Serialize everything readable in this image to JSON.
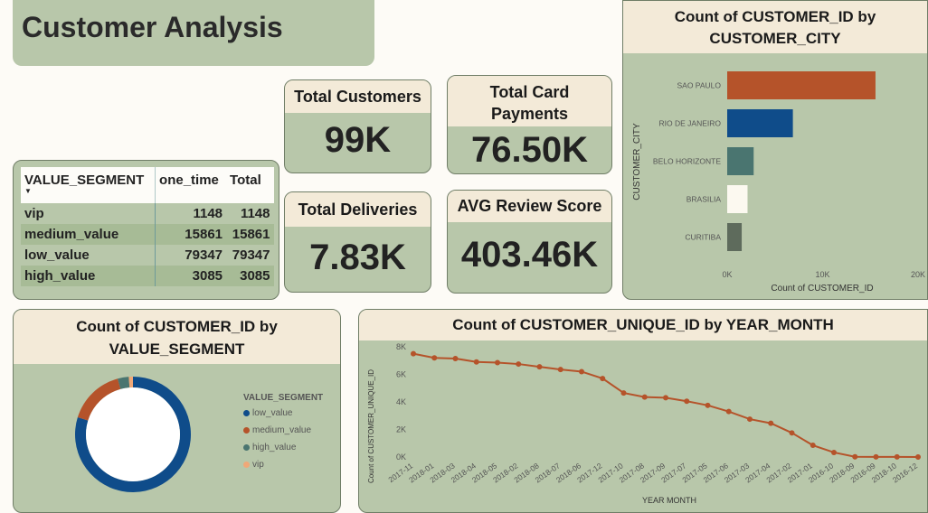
{
  "page_title": "Customer Analysis",
  "cards": {
    "total_customers": {
      "label": "Total Customers",
      "value": "99K"
    },
    "total_card_payments": {
      "label": "Total Card Payments",
      "value": "76.50K"
    },
    "total_deliveries": {
      "label": "Total Deliveries",
      "value": "7.83K"
    },
    "avg_review_score": {
      "label": "AVG Review Score",
      "value": "403.46K"
    }
  },
  "segment_table": {
    "headers": [
      "VALUE_SEGMENT",
      "one_time",
      "Total"
    ],
    "rows": [
      {
        "segment": "vip",
        "one_time": "1148",
        "total": "1148"
      },
      {
        "segment": "medium_value",
        "one_time": "15861",
        "total": "15861"
      },
      {
        "segment": "low_value",
        "one_time": "79347",
        "total": "79347"
      },
      {
        "segment": "high_value",
        "one_time": "3085",
        "total": "3085"
      }
    ]
  },
  "colors": {
    "panel": "#b8c7aa",
    "header": "#f3ead8",
    "orange": "#b5532a",
    "blue": "#0f4c8a",
    "teal": "#4a7570",
    "white": "#fcf9f0",
    "gray": "#5e6b5c",
    "peach": "#f0a878"
  },
  "city_chart": {
    "title": "Count of CUSTOMER_ID by CUSTOMER_CITY",
    "ylabel": "CUSTOMER_CITY",
    "xlabel": "Count of CUSTOMER_ID",
    "tick_labels": [
      "0K",
      "10K",
      "20K"
    ]
  },
  "segment_chart": {
    "title": "Count of CUSTOMER_ID by VALUE_SEGMENT",
    "legend_title": "VALUE_SEGMENT"
  },
  "trend_chart": {
    "title": "Count of CUSTOMER_UNIQUE_ID by YEAR_MONTH",
    "ylabel": "Count of CUSTOMER_UNIQUE_ID",
    "xlabel": "YEAR MONTH",
    "ytick_labels": [
      "0K",
      "2K",
      "4K",
      "6K",
      "8K"
    ]
  },
  "chart_data": [
    {
      "type": "bar",
      "orientation": "horizontal",
      "title": "Count of CUSTOMER_ID by CUSTOMER_CITY",
      "xlabel": "Count of CUSTOMER_ID",
      "ylabel": "CUSTOMER_CITY",
      "categories": [
        "SAO PAULO",
        "RIO DE JANEIRO",
        "BELO HORIZONTE",
        "BRASILIA",
        "CURITIBA"
      ],
      "values": [
        15540,
        6882,
        2773,
        2131,
        1521
      ],
      "bar_colors": [
        "#b5532a",
        "#0f4c8a",
        "#4a7570",
        "#fcf9f0",
        "#5e6b5c"
      ],
      "xlim": [
        0,
        20000
      ],
      "grid": false
    },
    {
      "type": "pie",
      "style": "donut",
      "title": "Count of CUSTOMER_ID by VALUE_SEGMENT",
      "categories": [
        "low_value",
        "medium_value",
        "high_value",
        "vip"
      ],
      "values": [
        79347,
        15861,
        3085,
        1148
      ],
      "slice_colors": [
        "#0f4c8a",
        "#b5532a",
        "#4a7570",
        "#f0a878"
      ],
      "legend": "right"
    },
    {
      "type": "line",
      "title": "Count of CUSTOMER_UNIQUE_ID by YEAR_MONTH",
      "xlabel": "YEAR MONTH",
      "ylabel": "Count of CUSTOMER_UNIQUE_ID",
      "categories": [
        "2017-11",
        "2018-01",
        "2018-03",
        "2018-04",
        "2018-05",
        "2018-02",
        "2018-08",
        "2018-07",
        "2018-06",
        "2017-12",
        "2017-10",
        "2017-08",
        "2017-09",
        "2017-07",
        "2017-05",
        "2017-06",
        "2017-03",
        "2017-04",
        "2017-02",
        "2017-01",
        "2016-10",
        "2018-09",
        "2016-09",
        "2018-10",
        "2016-12"
      ],
      "values": [
        7500,
        7200,
        7150,
        6900,
        6850,
        6750,
        6550,
        6350,
        6200,
        5700,
        4650,
        4350,
        4300,
        4050,
        3750,
        3300,
        2750,
        2450,
        1750,
        850,
        330,
        15,
        5,
        5,
        2
      ],
      "line_color": "#b5532a",
      "ylim": [
        0,
        8000
      ],
      "grid": false
    }
  ]
}
